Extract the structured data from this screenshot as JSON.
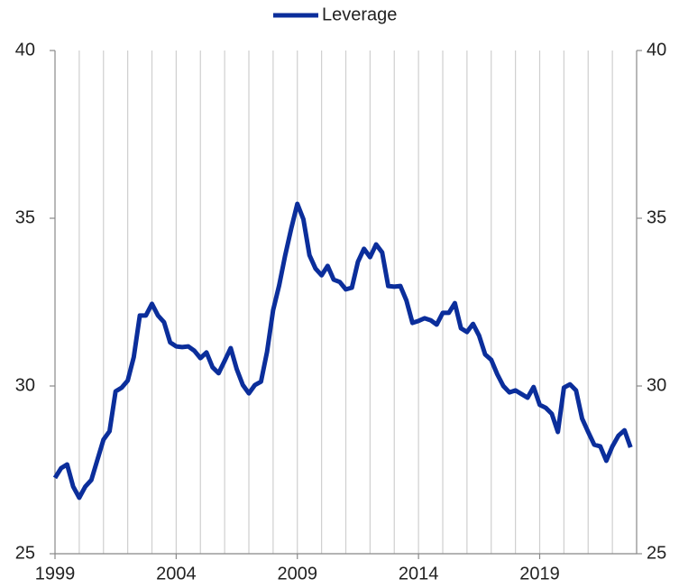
{
  "chart_data": {
    "type": "line",
    "series": [
      {
        "name": "Leverage",
        "color": "#0b2e9b",
        "x": [
          1999,
          1999.25,
          1999.5,
          1999.75,
          2000,
          2000.25,
          2000.5,
          2000.75,
          2001,
          2001.25,
          2001.5,
          2001.75,
          2002,
          2002.25,
          2002.5,
          2002.75,
          2003,
          2003.25,
          2003.5,
          2003.75,
          2004,
          2004.25,
          2004.5,
          2004.75,
          2005,
          2005.25,
          2005.5,
          2005.75,
          2006,
          2006.25,
          2006.5,
          2006.75,
          2007,
          2007.25,
          2007.5,
          2007.75,
          2008,
          2008.25,
          2008.5,
          2008.75,
          2009,
          2009.25,
          2009.5,
          2009.75,
          2010,
          2010.25,
          2010.5,
          2010.75,
          2011,
          2011.25,
          2011.5,
          2011.75,
          2012,
          2012.25,
          2012.5,
          2012.75,
          2013,
          2013.25,
          2013.5,
          2013.75,
          2014,
          2014.25,
          2014.5,
          2014.75,
          2015,
          2015.25,
          2015.5,
          2015.75,
          2016,
          2016.25,
          2016.5,
          2016.75,
          2017,
          2017.25,
          2017.5,
          2017.75,
          2018,
          2018.25,
          2018.5,
          2018.75,
          2019,
          2019.25,
          2019.5,
          2019.75,
          2020,
          2020.25,
          2020.5,
          2020.75,
          2021,
          2021.25,
          2021.5,
          2021.75,
          2022,
          2022.25,
          2022.5,
          2022.75
        ],
        "values": [
          27.26,
          27.55,
          27.66,
          27.0,
          26.67,
          27.0,
          27.2,
          27.8,
          28.4,
          28.65,
          29.84,
          29.95,
          30.16,
          30.86,
          32.1,
          32.1,
          32.45,
          32.1,
          31.9,
          31.3,
          31.18,
          31.16,
          31.18,
          31.05,
          30.83,
          31.0,
          30.56,
          30.38,
          30.75,
          31.13,
          30.5,
          30.03,
          29.78,
          30.03,
          30.13,
          31.02,
          32.26,
          33.0,
          33.9,
          34.7,
          35.43,
          34.97,
          33.9,
          33.5,
          33.3,
          33.58,
          33.17,
          33.1,
          32.88,
          32.93,
          33.7,
          34.09,
          33.84,
          34.22,
          33.98,
          32.98,
          32.96,
          32.98,
          32.55,
          31.88,
          31.94,
          32.02,
          31.96,
          31.83,
          32.18,
          32.18,
          32.47,
          31.72,
          31.61,
          31.85,
          31.5,
          30.94,
          30.78,
          30.35,
          30.0,
          29.81,
          29.87,
          29.76,
          29.65,
          29.97,
          29.44,
          29.35,
          29.17,
          28.63,
          29.95,
          30.05,
          29.87,
          29.03,
          28.63,
          28.25,
          28.2,
          27.77,
          28.2,
          28.52,
          28.68,
          28.17
        ]
      }
    ],
    "xlim": [
      1999,
      2023
    ],
    "xticks": [
      1999,
      2004,
      2009,
      2014,
      2019
    ],
    "xgrid": [
      2000,
      2001,
      2002,
      2003,
      2004,
      2005,
      2006,
      2007,
      2008,
      2009,
      2010,
      2011,
      2012,
      2013,
      2014,
      2015,
      2016,
      2017,
      2018,
      2019,
      2020,
      2021,
      2022
    ],
    "ylim": [
      25,
      40
    ],
    "yticks": [
      25,
      30,
      35,
      40
    ],
    "y2lim": [
      25,
      40
    ],
    "y2ticks": [
      25,
      30,
      35,
      40
    ],
    "legend": "top"
  }
}
